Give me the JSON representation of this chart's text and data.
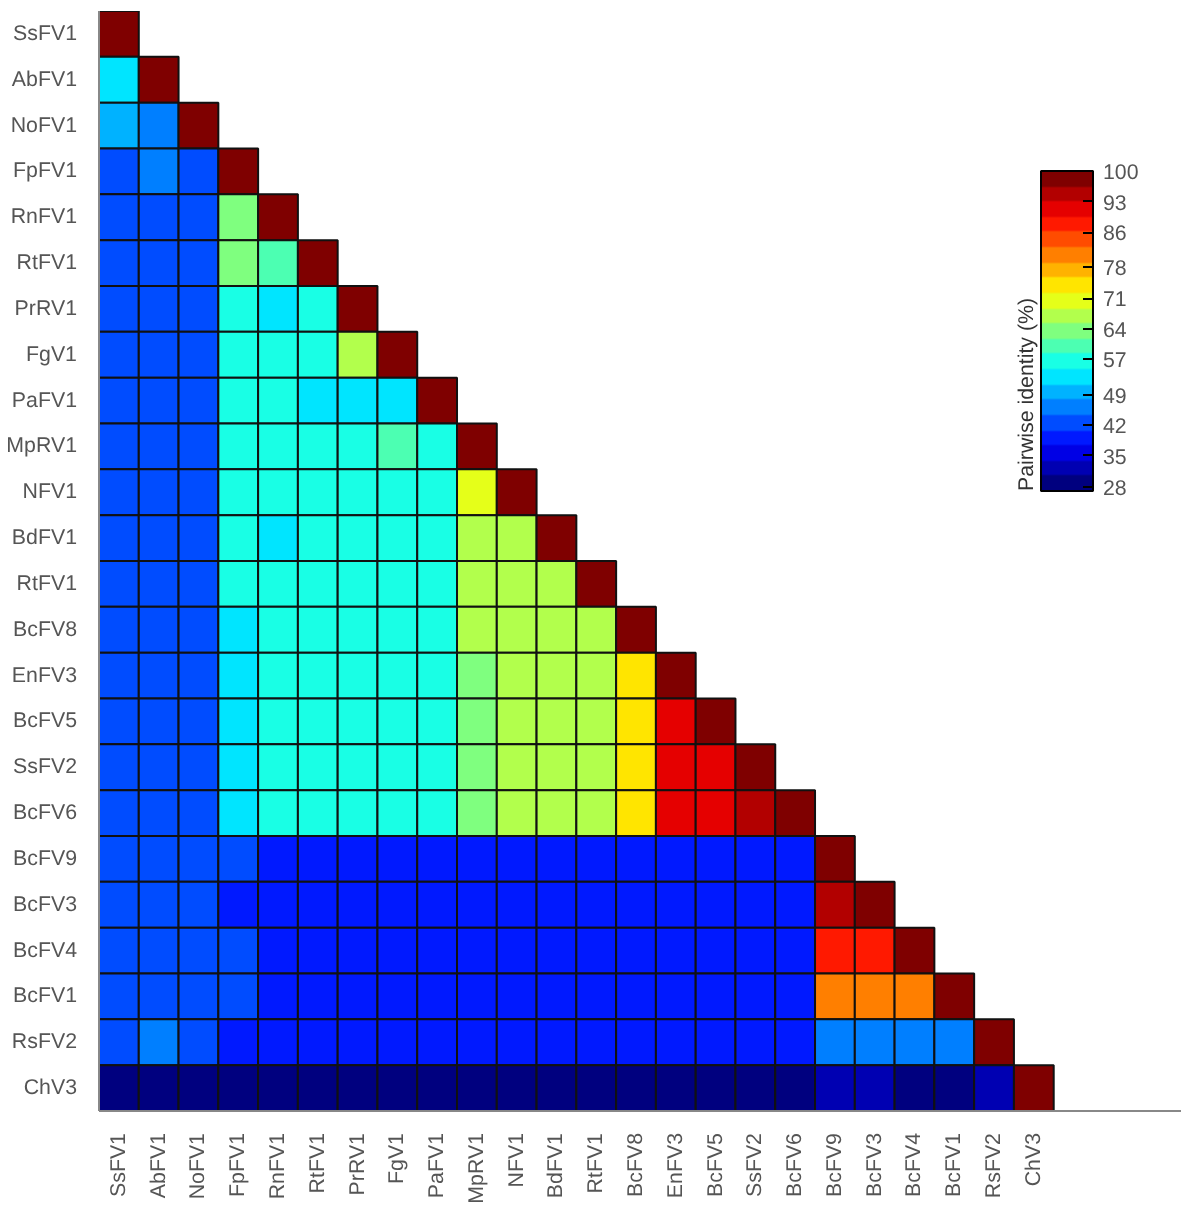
{
  "chart_data": {
    "type": "heatmap",
    "clabel": "Pairwise identity (%)",
    "categories": [
      "SsFV1",
      "AbFV1",
      "NoFV1",
      "FpFV1",
      "RnFV1",
      "RtFV1",
      "PrRV1",
      "FgV1",
      "PaFV1",
      "MpRV1",
      "NFV1",
      "BdFV1",
      "RtFV1",
      "BcFV8",
      "EnFV3",
      "BcFV5",
      "SsFV2",
      "BcFV6",
      "BcFV9",
      "BcFV3",
      "BcFV4",
      "BcFV1",
      "RsFV2",
      "ChV3"
    ],
    "y_categories": [
      "SsFV1",
      "AbFV1",
      "NoFV1",
      "FpFV1",
      "RnFV1",
      "RtFV1",
      "PrRV1",
      "FgV1",
      "PaFV1",
      "MpRV1",
      "NFV1",
      "BdFV1",
      "RtFV1",
      "BcFV8",
      "EnFV3",
      "BcFV5",
      "SsFV2",
      "BcFV6",
      "BcFV9",
      "BcFV3",
      "BcFV4",
      "BcFV1",
      "RsFV2",
      "ChV3"
    ],
    "cells": [
      [
        100,
        null,
        null,
        null,
        null,
        null,
        null,
        null,
        null,
        null,
        null,
        null,
        null,
        null,
        null,
        null,
        null,
        null,
        null,
        null,
        null,
        null,
        null,
        null
      ],
      [
        52,
        100,
        null,
        null,
        null,
        null,
        null,
        null,
        null,
        null,
        null,
        null,
        null,
        null,
        null,
        null,
        null,
        null,
        null,
        null,
        null,
        null,
        null,
        null
      ],
      [
        50,
        46,
        100,
        null,
        null,
        null,
        null,
        null,
        null,
        null,
        null,
        null,
        null,
        null,
        null,
        null,
        null,
        null,
        null,
        null,
        null,
        null,
        null,
        null
      ],
      [
        42,
        45,
        41,
        100,
        null,
        null,
        null,
        null,
        null,
        null,
        null,
        null,
        null,
        null,
        null,
        null,
        null,
        null,
        null,
        null,
        null,
        null,
        null,
        null
      ],
      [
        41,
        44,
        43,
        62,
        100,
        null,
        null,
        null,
        null,
        null,
        null,
        null,
        null,
        null,
        null,
        null,
        null,
        null,
        null,
        null,
        null,
        null,
        null,
        null
      ],
      [
        42,
        41,
        43,
        62,
        60,
        100,
        null,
        null,
        null,
        null,
        null,
        null,
        null,
        null,
        null,
        null,
        null,
        null,
        null,
        null,
        null,
        null,
        null,
        null
      ],
      [
        42,
        43,
        41,
        55,
        53,
        57,
        100,
        null,
        null,
        null,
        null,
        null,
        null,
        null,
        null,
        null,
        null,
        null,
        null,
        null,
        null,
        null,
        null,
        null
      ],
      [
        43,
        42,
        43,
        57,
        56,
        57,
        68,
        100,
        null,
        null,
        null,
        null,
        null,
        null,
        null,
        null,
        null,
        null,
        null,
        null,
        null,
        null,
        null,
        null
      ],
      [
        42,
        41,
        43,
        55,
        56,
        52,
        53,
        52,
        100,
        null,
        null,
        null,
        null,
        null,
        null,
        null,
        null,
        null,
        null,
        null,
        null,
        null,
        null,
        null
      ],
      [
        43,
        42,
        41,
        55,
        57,
        56,
        58,
        60,
        58,
        100,
        null,
        null,
        null,
        null,
        null,
        null,
        null,
        null,
        null,
        null,
        null,
        null,
        null,
        null
      ],
      [
        42,
        43,
        41,
        55,
        56,
        55,
        57,
        56,
        57,
        70,
        100,
        null,
        null,
        null,
        null,
        null,
        null,
        null,
        null,
        null,
        null,
        null,
        null,
        null
      ],
      [
        42,
        43,
        41,
        55,
        54,
        56,
        57,
        55,
        56,
        68,
        68,
        100,
        null,
        null,
        null,
        null,
        null,
        null,
        null,
        null,
        null,
        null,
        null,
        null
      ],
      [
        42,
        43,
        41,
        55,
        55,
        57,
        57,
        56,
        57,
        66,
        67,
        68,
        100,
        null,
        null,
        null,
        null,
        null,
        null,
        null,
        null,
        null,
        null,
        null
      ],
      [
        42,
        41,
        43,
        54,
        55,
        57,
        57,
        56,
        57,
        66,
        66,
        66,
        66,
        100,
        null,
        null,
        null,
        null,
        null,
        null,
        null,
        null,
        null,
        null
      ],
      [
        42,
        41,
        43,
        54,
        55,
        57,
        57,
        56,
        57,
        65,
        66,
        66,
        66,
        73,
        100,
        null,
        null,
        null,
        null,
        null,
        null,
        null,
        null,
        null
      ],
      [
        42,
        41,
        43,
        54,
        55,
        57,
        57,
        56,
        57,
        65,
        66,
        66,
        66,
        73,
        91,
        100,
        null,
        null,
        null,
        null,
        null,
        null,
        null,
        null
      ],
      [
        43,
        42,
        43,
        54,
        55,
        57,
        57,
        56,
        57,
        65,
        66,
        66,
        66,
        73,
        90,
        90,
        100,
        null,
        null,
        null,
        null,
        null,
        null,
        null
      ],
      [
        42,
        43,
        42,
        54,
        55,
        57,
        57,
        56,
        57,
        65,
        66,
        66,
        66,
        73,
        91,
        91,
        96,
        100,
        null,
        null,
        null,
        null,
        null,
        null
      ],
      [
        44,
        44,
        43,
        41,
        40,
        40,
        40,
        40,
        40,
        40,
        40,
        40,
        40,
        40,
        40,
        40,
        40,
        40,
        100,
        null,
        null,
        null,
        null,
        null
      ],
      [
        44,
        44,
        43,
        40,
        40,
        40,
        40,
        40,
        40,
        40,
        40,
        40,
        40,
        40,
        40,
        40,
        40,
        40,
        96,
        100,
        null,
        null,
        null,
        null
      ],
      [
        44,
        44,
        43,
        41,
        40,
        40,
        40,
        40,
        40,
        40,
        40,
        40,
        40,
        40,
        40,
        40,
        40,
        40,
        87,
        87,
        100,
        null,
        null,
        null
      ],
      [
        44,
        44,
        43,
        41,
        40,
        40,
        40,
        40,
        40,
        40,
        40,
        40,
        40,
        40,
        40,
        40,
        40,
        40,
        80,
        80,
        80,
        100,
        null,
        null
      ],
      [
        44,
        45,
        43,
        40,
        40,
        40,
        40,
        40,
        40,
        40,
        40,
        40,
        40,
        40,
        40,
        40,
        40,
        40,
        46,
        46,
        47,
        46,
        100,
        null
      ],
      [
        30,
        29,
        29,
        29,
        29,
        29,
        29,
        29,
        29,
        29,
        29,
        29,
        29,
        29,
        29,
        29,
        29,
        29,
        31,
        31,
        30,
        30,
        32,
        100
      ]
    ],
    "clim": [
      27,
      100
    ],
    "cticks": [
      28,
      35,
      42,
      49,
      57,
      64,
      71,
      78,
      86,
      93,
      100
    ]
  }
}
